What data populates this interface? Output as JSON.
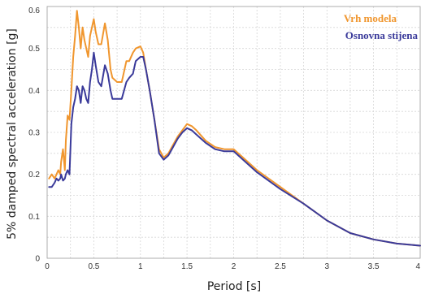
{
  "chart_data": {
    "type": "line",
    "title": "",
    "xlabel": "Period [s]",
    "ylabel": "5% damped spectral acceleration [g]",
    "xlim": [
      0,
      4
    ],
    "ylim": [
      0,
      0.6
    ],
    "x_ticks": [
      "0",
      "0.5",
      "1",
      "1.5",
      "2",
      "2.5",
      "3",
      "3.5",
      "4"
    ],
    "y_ticks": [
      "0",
      "0.1",
      "0.2",
      "0.3",
      "0.4",
      "0.5",
      "0.6"
    ],
    "grid": true,
    "legend_position": "top-right",
    "series": [
      {
        "name": "Vrh modela",
        "color": "#F0962E",
        "x": [
          0.02,
          0.05,
          0.08,
          0.1,
          0.12,
          0.14,
          0.15,
          0.17,
          0.19,
          0.2,
          0.22,
          0.24,
          0.26,
          0.28,
          0.3,
          0.32,
          0.34,
          0.36,
          0.38,
          0.4,
          0.42,
          0.44,
          0.46,
          0.48,
          0.5,
          0.52,
          0.55,
          0.58,
          0.62,
          0.65,
          0.68,
          0.7,
          0.75,
          0.8,
          0.85,
          0.88,
          0.92,
          0.95,
          1.0,
          1.03,
          1.06,
          1.1,
          1.15,
          1.2,
          1.25,
          1.3,
          1.35,
          1.4,
          1.45,
          1.5,
          1.55,
          1.6,
          1.7,
          1.8,
          1.9,
          2.0,
          2.1,
          2.25,
          2.5,
          2.75,
          3.0,
          3.25,
          3.5,
          3.75,
          4.0
        ],
        "y": [
          0.19,
          0.2,
          0.19,
          0.2,
          0.21,
          0.2,
          0.23,
          0.26,
          0.21,
          0.28,
          0.34,
          0.33,
          0.4,
          0.48,
          0.53,
          0.59,
          0.55,
          0.5,
          0.55,
          0.52,
          0.5,
          0.48,
          0.53,
          0.55,
          0.57,
          0.54,
          0.51,
          0.51,
          0.56,
          0.52,
          0.45,
          0.43,
          0.42,
          0.42,
          0.47,
          0.47,
          0.49,
          0.5,
          0.505,
          0.49,
          0.45,
          0.4,
          0.33,
          0.26,
          0.24,
          0.25,
          0.27,
          0.29,
          0.305,
          0.32,
          0.315,
          0.305,
          0.28,
          0.265,
          0.26,
          0.26,
          0.24,
          0.21,
          0.17,
          0.13,
          0.09,
          0.06,
          0.045,
          0.035,
          0.03
        ]
      },
      {
        "name": "Osnovna stijena",
        "color": "#3A3A9A",
        "x": [
          0.02,
          0.05,
          0.08,
          0.1,
          0.12,
          0.14,
          0.15,
          0.17,
          0.19,
          0.2,
          0.22,
          0.24,
          0.26,
          0.28,
          0.3,
          0.32,
          0.34,
          0.36,
          0.38,
          0.4,
          0.42,
          0.44,
          0.46,
          0.48,
          0.5,
          0.52,
          0.55,
          0.58,
          0.62,
          0.65,
          0.68,
          0.7,
          0.75,
          0.8,
          0.85,
          0.88,
          0.92,
          0.95,
          1.0,
          1.03,
          1.06,
          1.1,
          1.15,
          1.2,
          1.25,
          1.3,
          1.35,
          1.4,
          1.45,
          1.5,
          1.55,
          1.6,
          1.7,
          1.8,
          1.9,
          2.0,
          2.1,
          2.25,
          2.5,
          2.75,
          3.0,
          3.25,
          3.5,
          3.75,
          4.0
        ],
        "y": [
          0.17,
          0.17,
          0.18,
          0.19,
          0.185,
          0.19,
          0.2,
          0.185,
          0.19,
          0.2,
          0.21,
          0.2,
          0.32,
          0.36,
          0.38,
          0.41,
          0.4,
          0.37,
          0.41,
          0.4,
          0.38,
          0.37,
          0.42,
          0.45,
          0.49,
          0.46,
          0.42,
          0.41,
          0.46,
          0.44,
          0.4,
          0.38,
          0.38,
          0.38,
          0.42,
          0.43,
          0.44,
          0.47,
          0.48,
          0.48,
          0.45,
          0.4,
          0.33,
          0.25,
          0.235,
          0.245,
          0.265,
          0.285,
          0.3,
          0.31,
          0.305,
          0.295,
          0.275,
          0.26,
          0.255,
          0.255,
          0.235,
          0.205,
          0.165,
          0.13,
          0.09,
          0.06,
          0.045,
          0.035,
          0.03
        ]
      }
    ]
  }
}
